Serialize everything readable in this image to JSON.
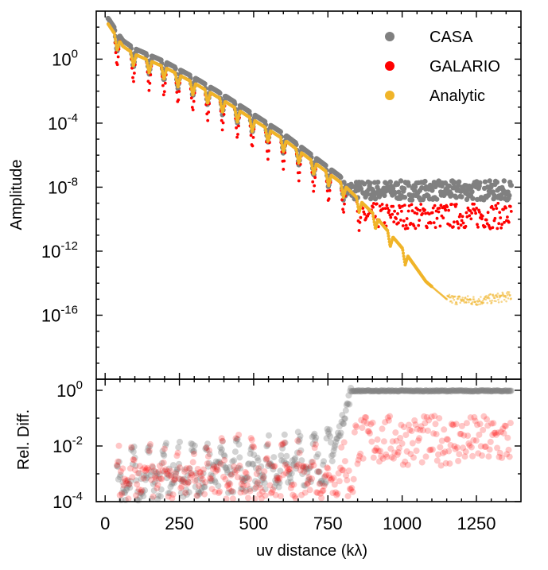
{
  "chart_data": [
    {
      "type": "scatter",
      "panel": "top",
      "ylabel": "Amplitude",
      "yscale": "log",
      "ylim_exp": [
        -20,
        3
      ],
      "xlim": [
        -30,
        1400
      ],
      "ytick_exps": [
        0,
        -4,
        -8,
        -12,
        -16
      ],
      "ytick_labels": [
        "10^0",
        "10^-4",
        "10^-8",
        "10^-12",
        "10^-16"
      ],
      "legend": {
        "position": "top-right",
        "entries": [
          {
            "label": "CASA",
            "color": "#808080"
          },
          {
            "label": "GALARIO",
            "color": "#ff0000"
          },
          {
            "label": "Analytic",
            "color": "#f0b429"
          }
        ]
      },
      "series": [
        {
          "name": "CASA",
          "color": "#808080",
          "noise_floor_exp": -8.2,
          "noise_range": [
            800,
            1370
          ],
          "description": "visibility amplitudes following analytic curve then flat noise floor near 1e-8"
        },
        {
          "name": "GALARIO",
          "color": "#ff0000",
          "noise_floor_exp": -9.8,
          "noise_range": [
            860,
            1370
          ],
          "description": "amplitudes following analytic curve then noise floor near 1e-10"
        },
        {
          "name": "Analytic",
          "color": "#f0b429",
          "description": "oscillating decaying profile with nulls, flattening near 1e-15 after 1100 kλ"
        }
      ],
      "envelope": [
        [
          10,
          2.2
        ],
        [
          60,
          0.8
        ],
        [
          100,
          0.3
        ],
        [
          200,
          -0.5
        ],
        [
          300,
          -1.5
        ],
        [
          400,
          -2.6
        ],
        [
          500,
          -3.8
        ],
        [
          600,
          -5.0
        ],
        [
          700,
          -6.4
        ],
        [
          800,
          -7.8
        ],
        [
          900,
          -9.6
        ],
        [
          1000,
          -11.8
        ],
        [
          1080,
          -13.9
        ],
        [
          1150,
          -15.0
        ],
        [
          1250,
          -15.1
        ],
        [
          1370,
          -14.8
        ]
      ],
      "null_positions": [
        40,
        95,
        148,
        198,
        245,
        295,
        345,
        395,
        445,
        495,
        548,
        600,
        652,
        702,
        752,
        802,
        855,
        910,
        960,
        1010
      ]
    },
    {
      "type": "scatter",
      "panel": "bottom",
      "xlabel": "uv distance (kλ)",
      "ylabel": "Rel. Diff.",
      "yscale": "log",
      "ylim_exp": [
        -4,
        0.4
      ],
      "xlim": [
        -30,
        1400
      ],
      "xticks": [
        0,
        250,
        500,
        750,
        1000,
        1250
      ],
      "xtick_labels": [
        "0",
        "250",
        "500",
        "750",
        "1000",
        "1250"
      ],
      "ytick_exps": [
        0,
        -2,
        -4
      ],
      "ytick_labels": [
        "10^0",
        "10^-2",
        "10^-4"
      ],
      "series": [
        {
          "name": "CASA",
          "color": "#808080",
          "description": "relative difference rising from ~1e-3.5 to saturate at 1e0 beyond ~820 kλ"
        },
        {
          "name": "GALARIO",
          "color": "#ff0000",
          "description": "scattered relative differences, mostly ~1e-2 beyond 850 kλ"
        }
      ]
    }
  ]
}
